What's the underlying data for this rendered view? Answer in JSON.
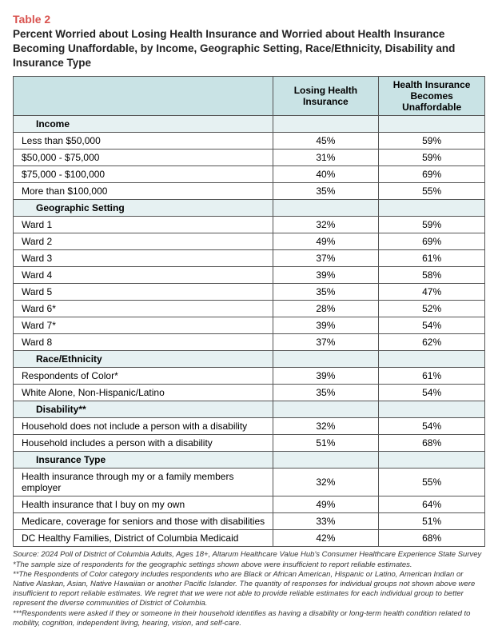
{
  "colors": {
    "header_bg": "#c9e3e5",
    "band_bg": "#e6f1f2",
    "row_bg": "#ffffff",
    "accent": "#d9534f"
  },
  "table_label": "Table 2",
  "title": "Percent Worried about Losing Health Insurance and Worried about Health Insurance Becoming Unaffordable, by Income, Geographic Setting, Race/Ethnicity, Disability and Insurance Type",
  "columns": [
    "Losing Health Insurance",
    "Health Insurance Becomes Unaffordable"
  ],
  "sections": [
    {
      "name": "Income",
      "rows": [
        {
          "label": "Less than $50,000",
          "v1": "45%",
          "v2": "59%"
        },
        {
          "label": "$50,000 - $75,000",
          "v1": "31%",
          "v2": "59%"
        },
        {
          "label": "$75,000 - $100,000",
          "v1": "40%",
          "v2": "69%"
        },
        {
          "label": "More than $100,000",
          "v1": "35%",
          "v2": "55%"
        }
      ]
    },
    {
      "name": "Geographic Setting",
      "rows": [
        {
          "label": "Ward 1",
          "v1": "32%",
          "v2": "59%"
        },
        {
          "label": "Ward 2",
          "v1": "49%",
          "v2": "69%"
        },
        {
          "label": "Ward 3",
          "v1": "37%",
          "v2": "61%"
        },
        {
          "label": "Ward 4",
          "v1": "39%",
          "v2": "58%"
        },
        {
          "label": "Ward 5",
          "v1": "35%",
          "v2": "47%"
        },
        {
          "label": "Ward 6*",
          "v1": "28%",
          "v2": "52%"
        },
        {
          "label": "Ward 7*",
          "v1": "39%",
          "v2": "54%"
        },
        {
          "label": "Ward 8",
          "v1": "37%",
          "v2": "62%"
        }
      ]
    },
    {
      "name": "Race/Ethnicity",
      "rows": [
        {
          "label": "Respondents of Color*",
          "v1": "39%",
          "v2": "61%"
        },
        {
          "label": "White Alone, Non-Hispanic/Latino",
          "v1": "35%",
          "v2": "54%"
        }
      ]
    },
    {
      "name": "Disability**",
      "rows": [
        {
          "label": "Household does not include a person with a disability",
          "v1": "32%",
          "v2": "54%"
        },
        {
          "label": "Household includes a person with a disability",
          "v1": "51%",
          "v2": "68%"
        }
      ]
    },
    {
      "name": "Insurance Type",
      "rows": [
        {
          "label": "Health insurance through my or a family members employer",
          "v1": "32%",
          "v2": "55%"
        },
        {
          "label": "Health insurance that I buy on my own",
          "v1": "49%",
          "v2": "64%"
        },
        {
          "label": "Medicare, coverage for seniors and those with disabilities",
          "v1": "33%",
          "v2": "51%"
        },
        {
          "label": "DC Healthy Families, District of Columbia Medicaid",
          "v1": "42%",
          "v2": "68%"
        }
      ]
    }
  ],
  "footnotes": [
    "Source: 2024 Poll of District of Columbia Adults, Ages 18+, Altarum Healthcare Value Hub's Consumer Healthcare Experience State Survey",
    "*The sample size of respondents for the geographic settings shown above were insufficient to report reliable estimates.",
    "**The Respondents of Color category includes respondents who are Black or African American, Hispanic or Latino, American Indian or Native Alaskan, Asian, Native Hawaiian or another Pacific Islander. The quantity of responses for individual groups not shown above were insufficient to report reliable estimates. We regret that we were not able to provide reliable estimates for each individual group to better represent the diverse communities of District of Columbia.",
    "***Respondents were asked if they or someone in their household identifies as having a disability or long-term health condition related to mobility, cognition, independent living, hearing, vision, and self-care."
  ]
}
